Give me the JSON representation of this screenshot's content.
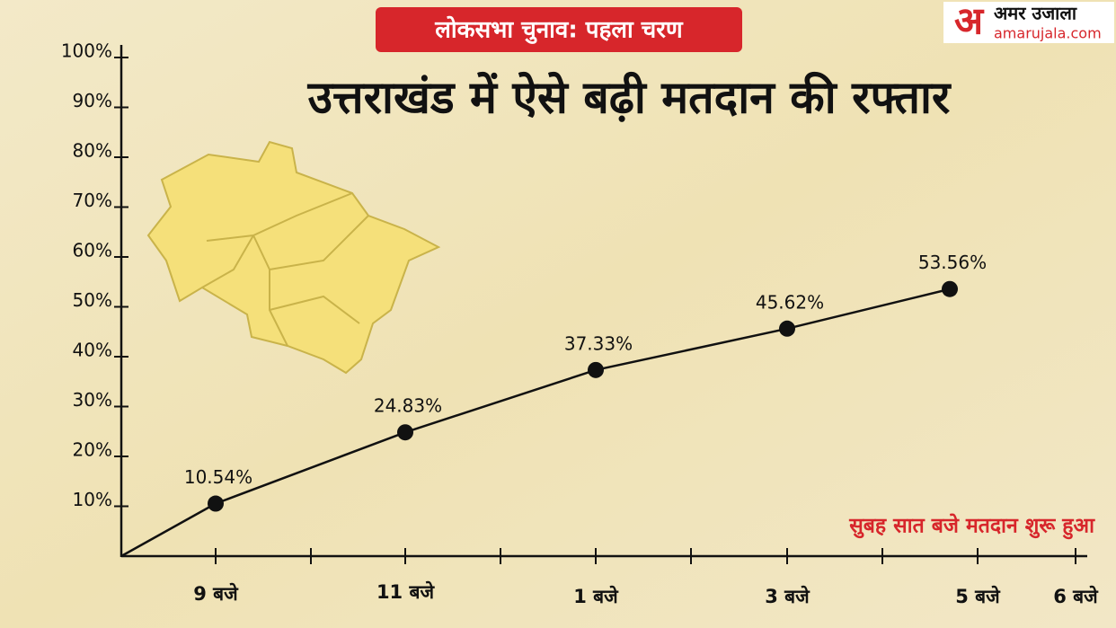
{
  "brand": {
    "logo_mark": "अ",
    "name": "अमर उजाला",
    "site": "amarujala.com"
  },
  "chart_data": {
    "type": "line",
    "subtitle": "लोकसभा चुनाव: पहला चरण",
    "title": "उत्तराखंड में  ऐसे बढ़ी मतदान की रफ्तार",
    "annotation": "सुबह सात बजे मतदान शुरू हुआ",
    "categories": [
      "9 बजे",
      "11 बजे",
      "1 बजे",
      "3 बजे",
      "5 बजे",
      "6 बजे"
    ],
    "values": [
      10.54,
      24.83,
      37.33,
      45.62,
      53.56,
      null
    ],
    "value_labels": [
      "10.54%",
      "24.83%",
      "37.33%",
      "45.62%",
      "53.56%",
      null
    ],
    "color": "#111111",
    "ylim": [
      0,
      100
    ],
    "yticks": [
      {
        "value": 10,
        "label": "10%"
      },
      {
        "value": 20,
        "label": "20%"
      },
      {
        "value": 30,
        "label": "30%"
      },
      {
        "value": 40,
        "label": "40%"
      },
      {
        "value": 50,
        "label": "50%"
      },
      {
        "value": 60,
        "label": "60%"
      },
      {
        "value": 70,
        "label": "70%"
      },
      {
        "value": 80,
        "label": "80%"
      },
      {
        "value": 90,
        "label": "90%"
      },
      {
        "value": 100,
        "label": "100%"
      }
    ]
  }
}
